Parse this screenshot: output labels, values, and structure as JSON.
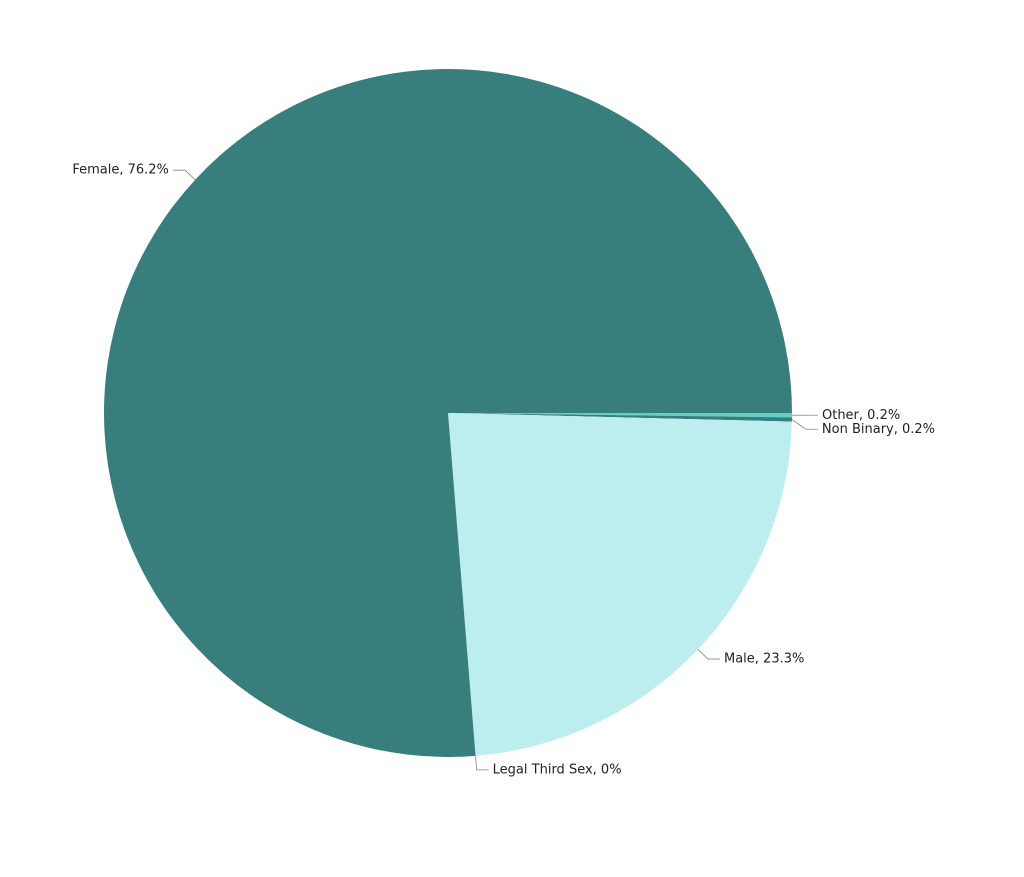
{
  "chart_data": {
    "type": "pie",
    "values": [
      0.2,
      0.2,
      23.3,
      0,
      76.2
    ],
    "value_labels": [
      "Other, 0.2%",
      "Non Binary, 0.2%",
      "Male, 23.3%",
      "Legal Third Sex, 0%",
      "Female, 76.2%"
    ],
    "colors": [
      "#5fd0cb",
      "#387e7c",
      "#bdeeef",
      "#9fdcdc",
      "#387e7c"
    ],
    "start_angle": 90,
    "direction": "clockwise"
  }
}
